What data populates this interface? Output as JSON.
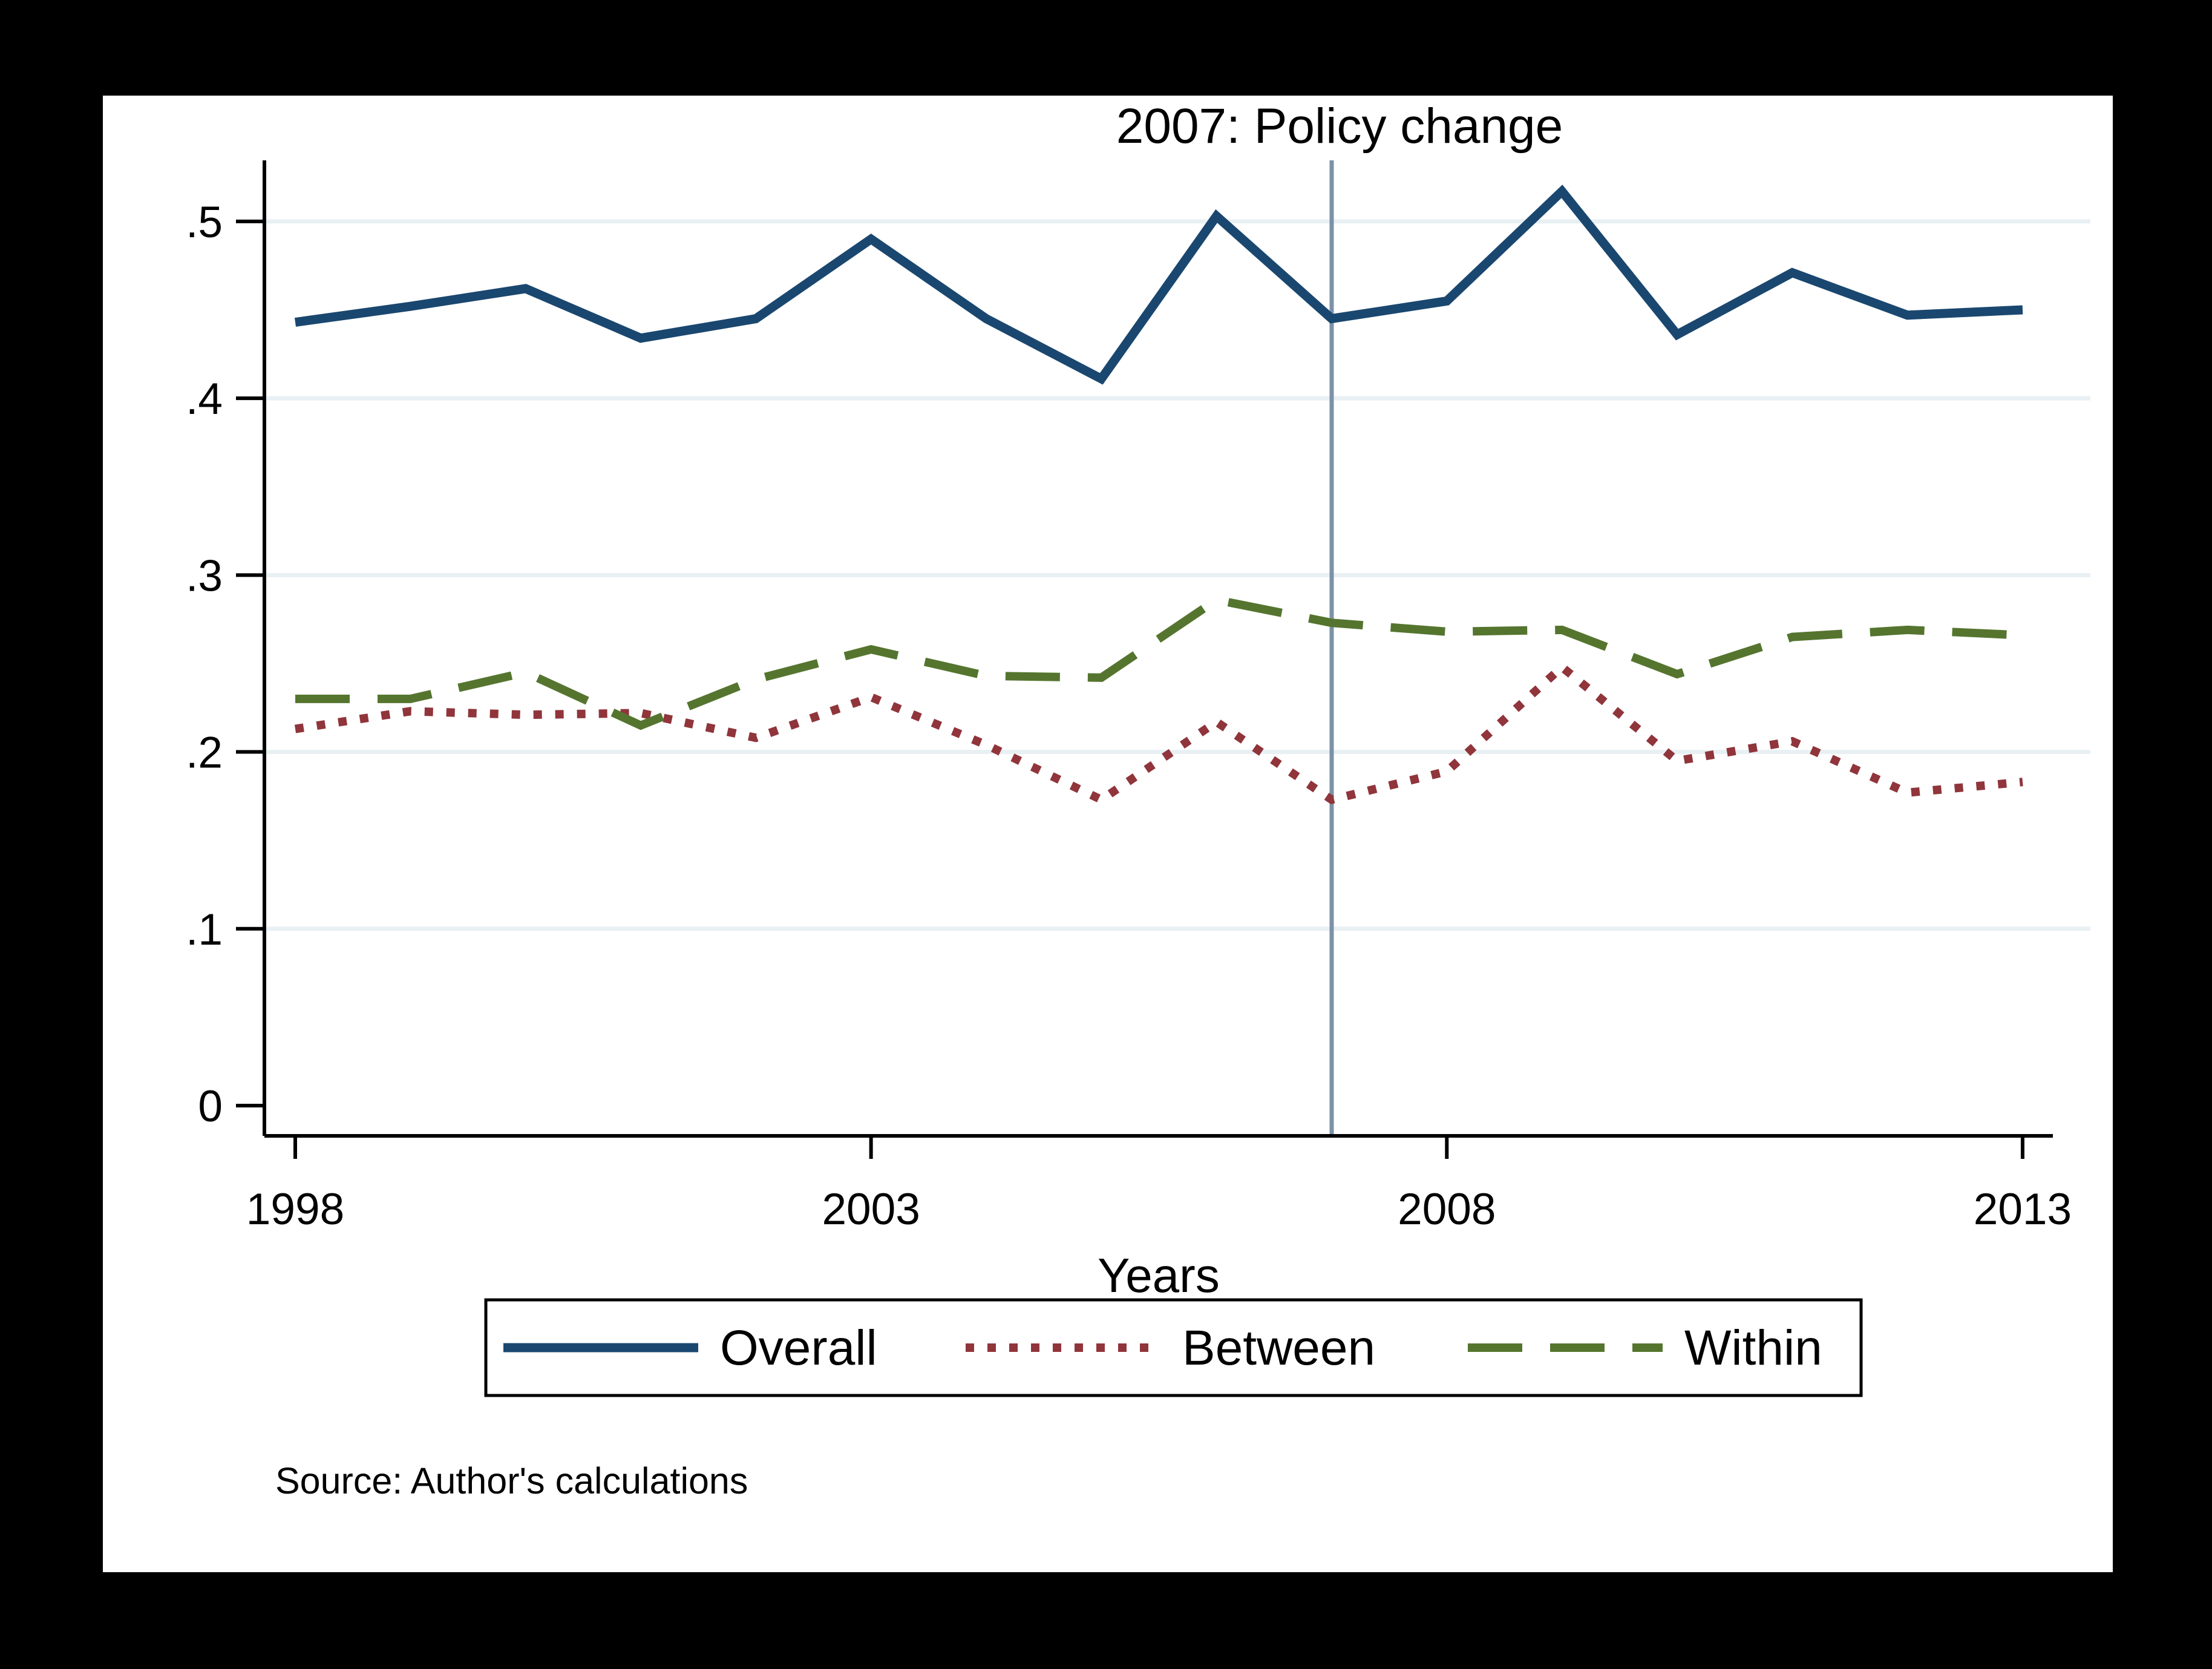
{
  "figure": {
    "background_color": "#000000",
    "panel_color": "#ffffff",
    "source_note": "Source: Author's calculations"
  },
  "chart_data": {
    "type": "line",
    "title": "2007: Policy change",
    "xlabel": "Years",
    "ylabel": "",
    "x": [
      1998,
      1999,
      2000,
      2001,
      2002,
      2003,
      2004,
      2005,
      2006,
      2007,
      2008,
      2009,
      2010,
      2011,
      2012,
      2013
    ],
    "series": [
      {
        "name": "Overall",
        "color": "#1a476f",
        "style": "solid",
        "values": [
          0.443,
          0.452,
          0.462,
          0.434,
          0.445,
          0.49,
          0.445,
          0.411,
          0.503,
          0.445,
          0.455,
          0.517,
          0.436,
          0.471,
          0.447,
          0.45
        ]
      },
      {
        "name": "Between",
        "color": "#90353b",
        "style": "dotted",
        "values": [
          0.213,
          0.223,
          0.221,
          0.222,
          0.208,
          0.231,
          0.204,
          0.173,
          0.217,
          0.173,
          0.189,
          0.248,
          0.195,
          0.206,
          0.177,
          0.183
        ]
      },
      {
        "name": "Within",
        "color": "#55752f",
        "style": "dashed",
        "values": [
          0.23,
          0.23,
          0.245,
          0.215,
          0.241,
          0.258,
          0.243,
          0.242,
          0.286,
          0.273,
          0.268,
          0.269,
          0.244,
          0.265,
          0.269,
          0.266
        ]
      }
    ],
    "xticks": [
      {
        "label": "1998",
        "value": 1998
      },
      {
        "label": "2003",
        "value": 2003
      },
      {
        "label": "2008",
        "value": 2008
      },
      {
        "label": "2013",
        "value": 2013
      }
    ],
    "yticks": [
      {
        "label": "0",
        "value": 0
      },
      {
        "label": ".1",
        "value": 0.1
      },
      {
        "label": ".2",
        "value": 0.2
      },
      {
        "label": ".3",
        "value": 0.3
      },
      {
        "label": ".4",
        "value": 0.4
      },
      {
        "label": ".5",
        "value": 0.5
      }
    ],
    "gridline_values": [
      0.1,
      0.2,
      0.3,
      0.4,
      0.5
    ],
    "ylim": [
      0,
      0.534
    ],
    "xlim": [
      1997.73,
      2013.26
    ],
    "grid": true,
    "legend_position": "bottom",
    "vline": {
      "x": 2007,
      "annotation": "2007: Policy change"
    },
    "colors": {
      "grid": "#e9f0f4",
      "vline": "#7b92a8",
      "axis": "#000000",
      "text": "#000000"
    }
  }
}
